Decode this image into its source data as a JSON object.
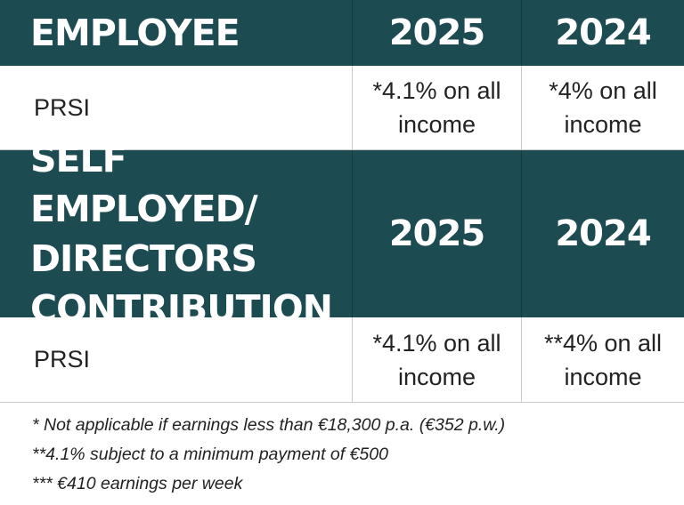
{
  "table": {
    "employee_section": {
      "header": "EMPLOYEE",
      "years": [
        "2025",
        "2024"
      ],
      "row": {
        "label": "PRSI",
        "values": [
          "*4.1% on all income",
          "*4% on all income"
        ]
      }
    },
    "self_employed_section": {
      "header": "SELF EMPLOYED/\nDIRECTORS\nCONTRIBUTION",
      "years": [
        "2025",
        "2024"
      ],
      "row": {
        "label": "PRSI",
        "values": [
          "*4.1% on all income",
          "**4% on all income"
        ]
      }
    }
  },
  "footnotes": [
    "* Not applicable if earnings less than €18,300 p.a. (€352 p.w.)",
    "**4.1% subject to a minimum payment of €500",
    "*** €410 earnings per week"
  ],
  "colors": {
    "header_bg": "#1d4b52",
    "header_text": "#ffffff",
    "body_text": "#222222",
    "divider": "#c9c9c9"
  }
}
